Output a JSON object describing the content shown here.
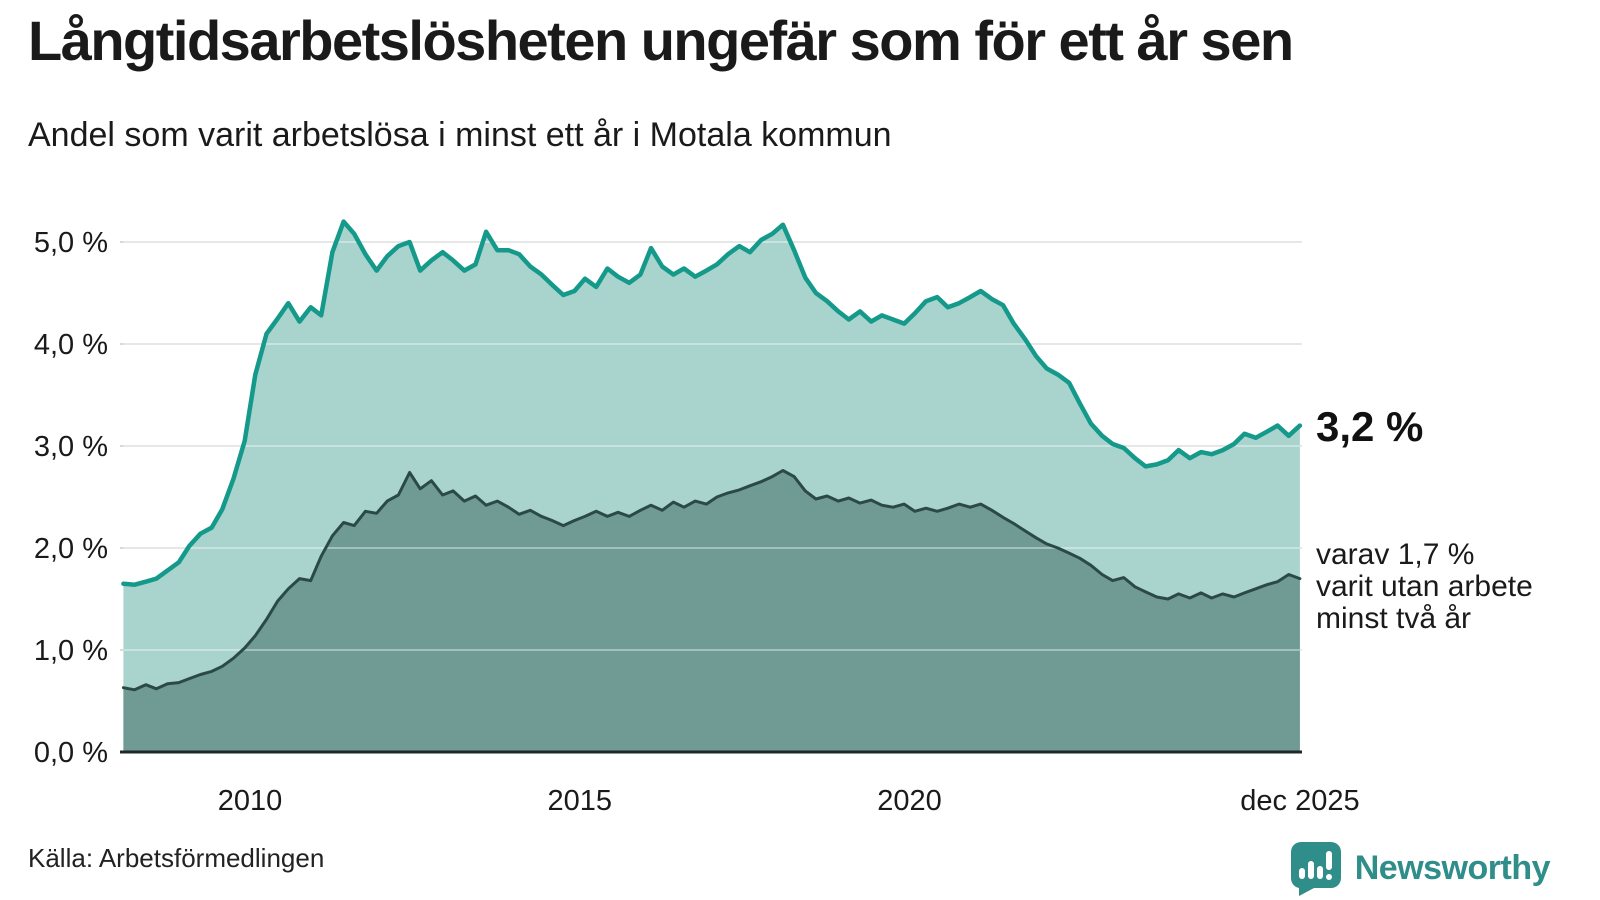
{
  "header": {
    "title": "Långtidsarbetslösheten ungefär som för ett år sen",
    "subtitle": "Andel som varit arbetslösa i minst ett år i Motala kommun"
  },
  "footer": {
    "source": "Källa: Arbetsförmedlingen",
    "brand": "Newsworthy"
  },
  "colors": {
    "total_line": "#14998a",
    "total_fill": "#a9d4cd",
    "two_year_line": "#2c4a45",
    "two_year_fill": "#6f9b94",
    "grid": "#d9d9d9",
    "grid_over_fill": "rgba(255,255,255,0.38)",
    "axis": "#1d2a27",
    "brand_teal": "#2f8e89",
    "text": "#1a1a1a"
  },
  "chart_data": {
    "type": "area",
    "title": "Långtidsarbetslösheten ungefär som för ett år sen",
    "subtitle": "Andel som varit arbetslösa i minst ett år i Motala kommun",
    "grid": true,
    "legend_position": "annotations-right",
    "ylim": [
      0,
      5.3
    ],
    "xlim": [
      2008.08,
      2025.92
    ],
    "y_ticks": [
      "5,0 %",
      "4,0 %",
      "3,0 %",
      "2,0 %",
      "1,0 %",
      "0,0 %"
    ],
    "y_tick_values": [
      5,
      4,
      3,
      2,
      1,
      0
    ],
    "x_ticks": [
      "2010",
      "2015",
      "2020",
      "dec 2025"
    ],
    "x_tick_years": [
      2010,
      2015,
      2020,
      2025.92
    ],
    "x": [
      2008.08,
      2008.25,
      2008.42,
      2008.58,
      2008.75,
      2008.92,
      2009.08,
      2009.25,
      2009.42,
      2009.58,
      2009.75,
      2009.92,
      2010.08,
      2010.25,
      2010.42,
      2010.58,
      2010.75,
      2010.92,
      2011.08,
      2011.25,
      2011.42,
      2011.58,
      2011.75,
      2011.92,
      2012.08,
      2012.25,
      2012.42,
      2012.58,
      2012.75,
      2012.92,
      2013.08,
      2013.25,
      2013.42,
      2013.58,
      2013.75,
      2013.92,
      2014.08,
      2014.25,
      2014.42,
      2014.58,
      2014.75,
      2014.92,
      2015.08,
      2015.25,
      2015.42,
      2015.58,
      2015.75,
      2015.92,
      2016.08,
      2016.25,
      2016.42,
      2016.58,
      2016.75,
      2016.92,
      2017.08,
      2017.25,
      2017.42,
      2017.58,
      2017.75,
      2017.92,
      2018.08,
      2018.25,
      2018.42,
      2018.58,
      2018.75,
      2018.92,
      2019.08,
      2019.25,
      2019.42,
      2019.58,
      2019.75,
      2019.92,
      2020.08,
      2020.25,
      2020.42,
      2020.58,
      2020.75,
      2020.92,
      2021.08,
      2021.25,
      2021.42,
      2021.58,
      2021.75,
      2021.92,
      2022.08,
      2022.25,
      2022.42,
      2022.58,
      2022.75,
      2022.92,
      2023.08,
      2023.25,
      2023.42,
      2023.58,
      2023.75,
      2023.92,
      2024.08,
      2024.25,
      2024.42,
      2024.58,
      2024.75,
      2024.92,
      2025.08,
      2025.25,
      2025.42,
      2025.58,
      2025.75,
      2025.92
    ],
    "series": [
      {
        "name": "Andel som varit arbetslösa i minst ett år",
        "end_value_label": "3,2 %",
        "values": [
          1.65,
          1.64,
          1.67,
          1.7,
          1.78,
          1.86,
          2.02,
          2.14,
          2.2,
          2.38,
          2.68,
          3.05,
          3.7,
          4.1,
          4.25,
          4.4,
          4.22,
          4.36,
          4.28,
          4.9,
          5.2,
          5.08,
          4.88,
          4.72,
          4.86,
          4.96,
          5.0,
          4.72,
          4.82,
          4.9,
          4.82,
          4.72,
          4.78,
          5.1,
          4.92,
          4.92,
          4.88,
          4.76,
          4.68,
          4.58,
          4.48,
          4.52,
          4.64,
          4.56,
          4.74,
          4.66,
          4.6,
          4.68,
          4.94,
          4.76,
          4.68,
          4.74,
          4.66,
          4.72,
          4.78,
          4.88,
          4.96,
          4.9,
          5.02,
          5.08,
          5.17,
          4.92,
          4.65,
          4.5,
          4.42,
          4.32,
          4.24,
          4.32,
          4.22,
          4.28,
          4.24,
          4.2,
          4.3,
          4.42,
          4.46,
          4.36,
          4.4,
          4.46,
          4.52,
          4.44,
          4.38,
          4.2,
          4.05,
          3.88,
          3.76,
          3.7,
          3.62,
          3.42,
          3.22,
          3.1,
          3.02,
          2.98,
          2.88,
          2.8,
          2.82,
          2.86,
          2.96,
          2.88,
          2.94,
          2.92,
          2.96,
          3.02,
          3.12,
          3.08,
          3.14,
          3.2,
          3.1,
          3.2
        ]
      },
      {
        "name": "varav varit utan arbete minst två år",
        "end_value_label": "1,7 %",
        "values": [
          0.63,
          0.61,
          0.66,
          0.62,
          0.67,
          0.68,
          0.72,
          0.76,
          0.79,
          0.84,
          0.92,
          1.02,
          1.14,
          1.3,
          1.48,
          1.6,
          1.7,
          1.68,
          1.92,
          2.12,
          2.25,
          2.22,
          2.36,
          2.34,
          2.46,
          2.52,
          2.74,
          2.58,
          2.66,
          2.52,
          2.56,
          2.46,
          2.51,
          2.42,
          2.46,
          2.4,
          2.33,
          2.37,
          2.31,
          2.27,
          2.22,
          2.27,
          2.31,
          2.36,
          2.31,
          2.35,
          2.31,
          2.37,
          2.42,
          2.37,
          2.45,
          2.4,
          2.46,
          2.43,
          2.5,
          2.54,
          2.57,
          2.61,
          2.65,
          2.7,
          2.76,
          2.7,
          2.56,
          2.48,
          2.51,
          2.46,
          2.49,
          2.44,
          2.47,
          2.42,
          2.4,
          2.43,
          2.36,
          2.39,
          2.36,
          2.39,
          2.43,
          2.4,
          2.43,
          2.37,
          2.3,
          2.24,
          2.17,
          2.1,
          2.04,
          2.0,
          1.95,
          1.9,
          1.83,
          1.74,
          1.68,
          1.71,
          1.62,
          1.57,
          1.52,
          1.5,
          1.55,
          1.51,
          1.56,
          1.51,
          1.55,
          1.52,
          1.56,
          1.6,
          1.64,
          1.67,
          1.74,
          1.7
        ]
      }
    ],
    "annotations": {
      "total_label": "3,2 %",
      "two_year_line1": "varav 1,7 %",
      "two_year_line2": "varit utan arbete",
      "two_year_line3": "minst två år"
    }
  }
}
